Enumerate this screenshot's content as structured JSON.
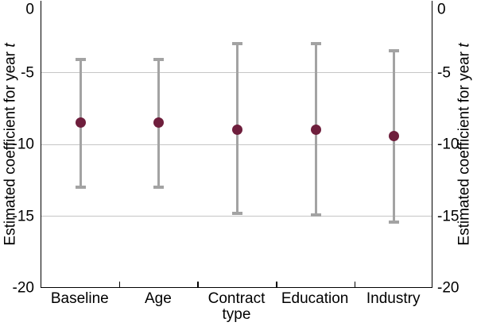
{
  "chart_data": {
    "type": "scatter",
    "title": "",
    "categories": [
      "Baseline",
      "Age",
      "Contract type",
      "Education",
      "Industry"
    ],
    "series": [
      {
        "name": "point_estimate",
        "values": [
          -8.5,
          -8.5,
          -9.0,
          -9.0,
          -9.4
        ]
      },
      {
        "name": "ci_upper",
        "values": [
          -4.1,
          -4.1,
          -3.0,
          -3.0,
          -3.5
        ]
      },
      {
        "name": "ci_lower",
        "values": [
          -13.0,
          -13.0,
          -14.8,
          -14.9,
          -15.4
        ]
      }
    ],
    "xlabel": "",
    "ylabel_main": "Estimated coefficient for year",
    "ylabel_var": "t",
    "ylabel_right_main": "Estimated coefficient for year",
    "ylabel_right_var": "t",
    "ylim": [
      -20,
      0
    ],
    "yticks": [
      0,
      -5,
      -10,
      -15,
      -20
    ],
    "ytick_labels": [
      "0",
      "-5",
      "-10",
      "-15",
      "-20"
    ],
    "gridlines": [
      -5,
      -10,
      -15
    ],
    "legend_position": "none",
    "dual_y_axis": true
  },
  "colors": {
    "marker": "#6e1e3c",
    "error_bar": "#a3a3a3",
    "gridline": "#c6c6c6",
    "axis": "#000000",
    "text": "#000000",
    "background": "#ffffff"
  }
}
